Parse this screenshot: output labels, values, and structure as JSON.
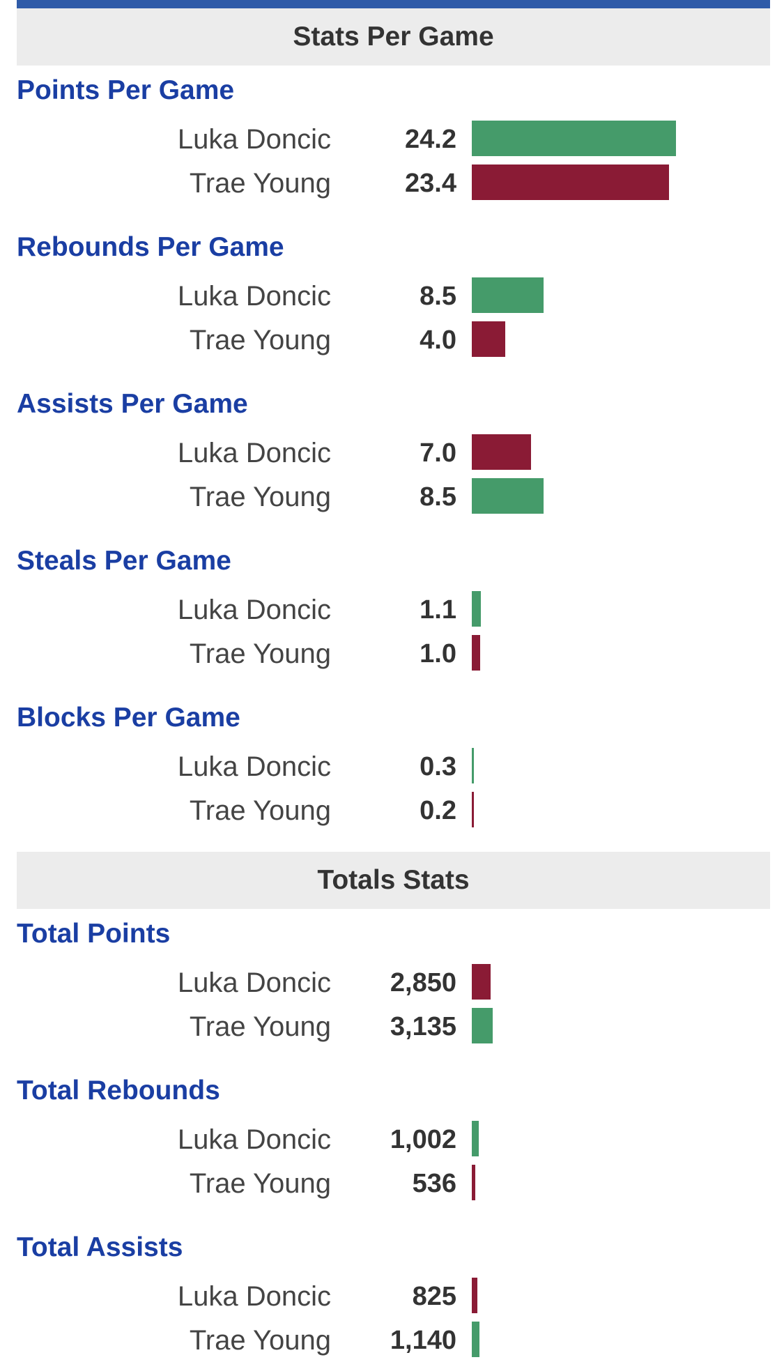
{
  "colors": {
    "header_bar": "#2f5ba8",
    "better": "#459b6a",
    "worse": "#8a1b35",
    "category_title": "#1a3ea3"
  },
  "sections": [
    {
      "title": "Stats Per Game"
    },
    {
      "title": "Totals Stats"
    }
  ],
  "categories": [
    {
      "title": "Points Per Game",
      "rows": [
        {
          "player": "Luka Doncic",
          "value": "24.2",
          "fill": 0.763,
          "color": "green"
        },
        {
          "player": "Trae Young",
          "value": "23.4",
          "fill": 0.738,
          "color": "red"
        }
      ]
    },
    {
      "title": "Rebounds Per Game",
      "rows": [
        {
          "player": "Luka Doncic",
          "value": "8.5",
          "fill": 0.268,
          "color": "green"
        },
        {
          "player": "Trae Young",
          "value": "4.0",
          "fill": 0.126,
          "color": "red"
        }
      ]
    },
    {
      "title": "Assists Per Game",
      "rows": [
        {
          "player": "Luka Doncic",
          "value": "7.0",
          "fill": 0.221,
          "color": "red"
        },
        {
          "player": "Trae Young",
          "value": "8.5",
          "fill": 0.268,
          "color": "green"
        }
      ]
    },
    {
      "title": "Steals Per Game",
      "rows": [
        {
          "player": "Luka Doncic",
          "value": "1.1",
          "fill": 0.035,
          "color": "green"
        },
        {
          "player": "Trae Young",
          "value": "1.0",
          "fill": 0.032,
          "color": "red"
        }
      ]
    },
    {
      "title": "Blocks Per Game",
      "rows": [
        {
          "player": "Luka Doncic",
          "value": "0.3",
          "fill": 0.009,
          "color": "green"
        },
        {
          "player": "Trae Young",
          "value": "0.2",
          "fill": 0.006,
          "color": "red"
        }
      ]
    },
    {
      "title": "Total Points",
      "rows": [
        {
          "player": "Luka Doncic",
          "value": "2,850",
          "fill": 0.071,
          "color": "red"
        },
        {
          "player": "Trae Young",
          "value": "3,135",
          "fill": 0.078,
          "color": "green"
        }
      ]
    },
    {
      "title": "Total Rebounds",
      "rows": [
        {
          "player": "Luka Doncic",
          "value": "1,002",
          "fill": 0.025,
          "color": "green"
        },
        {
          "player": "Trae Young",
          "value": "536",
          "fill": 0.013,
          "color": "red"
        }
      ]
    },
    {
      "title": "Total Assists",
      "rows": [
        {
          "player": "Luka Doncic",
          "value": "825",
          "fill": 0.021,
          "color": "red"
        },
        {
          "player": "Trae Young",
          "value": "1,140",
          "fill": 0.028,
          "color": "green"
        }
      ]
    }
  ]
}
